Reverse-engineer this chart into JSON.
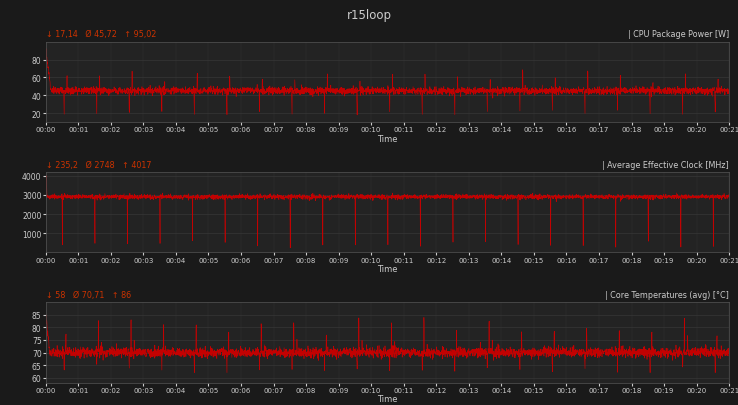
{
  "title": "r15loop",
  "fig_bg": "#1a1a1a",
  "panel_bg": "#232323",
  "line_color": "#cc0000",
  "text_color": "#cccccc",
  "stats_color": "#cc3300",
  "grid_color": "#3d3d3d",
  "spine_color": "#555555",
  "panels": [
    {
      "label_left": "↓ 17,14   Ø 45,72   ↑ 95,02",
      "label_right": "| CPU Package Power [W]",
      "ylim": [
        10,
        100
      ],
      "yticks": [
        20,
        40,
        60,
        80
      ],
      "base": 45,
      "spike_high": 93,
      "spike_mid": 65,
      "dip": 20,
      "noise": 2.0,
      "type": "power"
    },
    {
      "label_left": "↓ 235,2   Ø 2748   ↑ 4017",
      "label_right": "| Average Effective Clock [MHz]",
      "ylim": [
        0,
        4200
      ],
      "yticks": [
        1000,
        2000,
        3000,
        4000
      ],
      "base": 2900,
      "spike_high": 4000,
      "spike_mid": 3200,
      "dip": 400,
      "noise": 60,
      "type": "clock"
    },
    {
      "label_left": "↓ 58   Ø 70,71   ↑ 86",
      "label_right": "| Core Temperatures (avg) [°C]",
      "ylim": [
        58,
        90
      ],
      "yticks": [
        60,
        65,
        70,
        75,
        80,
        85
      ],
      "base": 70,
      "spike_high": 85,
      "spike_mid": 78,
      "dip": 63,
      "noise": 1.0,
      "type": "temp"
    }
  ],
  "duration": 1260,
  "xtick_step": 60,
  "xlabel": "Time",
  "n_cycles": 21
}
